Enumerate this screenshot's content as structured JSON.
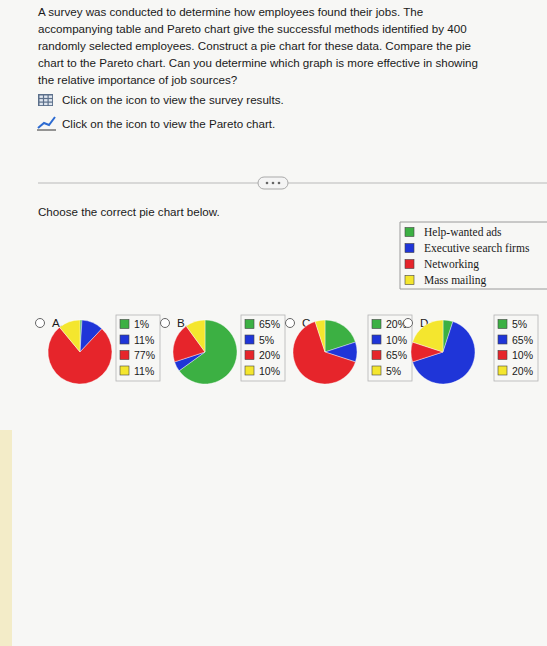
{
  "question": [
    "A survey was conducted to determine how employees found their jobs. The",
    "accompanying table and Pareto chart give the successful methods identified by 400",
    "randomly selected employees. Construct a pie chart for these data. Compare the pie",
    "chart to the Pareto chart. Can you determine which graph is more effective in showing",
    "the relative importance of job sources?"
  ],
  "links": [
    "Click on the icon to view the survey results.",
    "Click on the icon to view the Pareto chart."
  ],
  "prompt": "Choose the correct pie chart below.",
  "key": {
    "items": [
      {
        "label": "Help-wanted ads",
        "color": "#3cb043"
      },
      {
        "label": "Executive search firms",
        "color": "#1f35d8"
      },
      {
        "label": "Networking",
        "color": "#e6252b"
      },
      {
        "label": "Mass mailing",
        "color": "#f4e62e"
      }
    ]
  },
  "chart_data": [
    {
      "type": "pie",
      "title": "A.",
      "values": [
        1,
        11,
        77,
        11
      ],
      "value_labels": [
        "1%",
        "11%",
        "77%",
        "11%"
      ],
      "colors": [
        "#3cb043",
        "#1f35d8",
        "#e6252b",
        "#f4e62e"
      ]
    },
    {
      "type": "pie",
      "title": "B.",
      "values": [
        65,
        5,
        20,
        10
      ],
      "value_labels": [
        "65%",
        "5%",
        "20%",
        "10%"
      ],
      "colors": [
        "#3cb043",
        "#1f35d8",
        "#e6252b",
        "#f4e62e"
      ]
    },
    {
      "type": "pie",
      "title": "C.",
      "values": [
        20,
        10,
        65,
        5
      ],
      "value_labels": [
        "20%",
        "10%",
        "65%",
        "5%"
      ],
      "colors": [
        "#3cb043",
        "#1f35d8",
        "#e6252b",
        "#f4e62e"
      ]
    },
    {
      "type": "pie",
      "title": "D.",
      "values": [
        5,
        65,
        10,
        20
      ],
      "value_labels": [
        "5%",
        "65%",
        "10%",
        "20%"
      ],
      "colors": [
        "#3cb043",
        "#1f35d8",
        "#e6252b",
        "#f4e62e"
      ]
    }
  ]
}
